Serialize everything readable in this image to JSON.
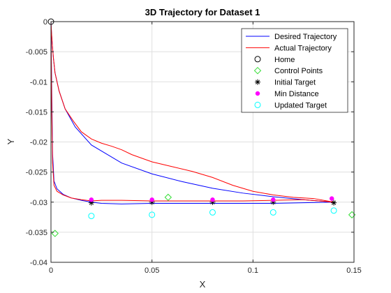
{
  "chart_data": {
    "type": "line",
    "title": "3D Trajectory for Dataset 1",
    "xlabel": "X",
    "ylabel": "Y",
    "xlim": [
      0,
      0.15
    ],
    "ylim": [
      -0.04,
      0
    ],
    "xticks": [
      "0",
      "0.05",
      "0.1",
      "0.15"
    ],
    "yticks": [
      "0",
      "-0.005",
      "-0.01",
      "-0.015",
      "-0.02",
      "-0.025",
      "-0.03",
      "-0.035",
      "-0.04"
    ],
    "grid": true,
    "legend_position": "top-right",
    "series": [
      {
        "name": "Desired Trajectory",
        "kind": "line",
        "color": "#0000ff",
        "x": [
          0,
          0.0003,
          0.0007,
          0.0012,
          0.002,
          0.004,
          0.007,
          0.012,
          0.02,
          0.035,
          0.05,
          0.065,
          0.08,
          0.095,
          0.11,
          0.125,
          0.14,
          0.125,
          0.11,
          0.095,
          0.08,
          0.065,
          0.05,
          0.035,
          0.025,
          0.02,
          0.015,
          0.01,
          0.006,
          0.003,
          0.0015,
          0.0008,
          0.0004,
          0
        ],
        "y": [
          0,
          -0.002,
          -0.004,
          -0.006,
          -0.0085,
          -0.0115,
          -0.0145,
          -0.0175,
          -0.0205,
          -0.0235,
          -0.0253,
          -0.0266,
          -0.0277,
          -0.0285,
          -0.0291,
          -0.0296,
          -0.03,
          -0.0301,
          -0.0302,
          -0.0302,
          -0.0302,
          -0.0302,
          -0.0302,
          -0.0303,
          -0.0302,
          -0.03,
          -0.0297,
          -0.0293,
          -0.0287,
          -0.0278,
          -0.0265,
          -0.022,
          -0.012,
          0
        ]
      },
      {
        "name": "Actual Trajectory",
        "kind": "line",
        "color": "#ff0000",
        "x": [
          0,
          0.0003,
          0.0007,
          0.0012,
          0.002,
          0.004,
          0.007,
          0.011,
          0.015,
          0.02,
          0.025,
          0.03,
          0.035,
          0.04,
          0.05,
          0.06,
          0.07,
          0.08,
          0.09,
          0.1,
          0.11,
          0.12,
          0.13,
          0.14,
          0.125,
          0.11,
          0.095,
          0.08,
          0.065,
          0.05,
          0.035,
          0.025,
          0.02,
          0.015,
          0.01,
          0.006,
          0.003,
          0.0015,
          0.0008,
          0.0004,
          0
        ],
        "y": [
          0,
          -0.002,
          -0.004,
          -0.006,
          -0.0085,
          -0.0115,
          -0.0145,
          -0.0165,
          -0.0183,
          -0.0195,
          -0.0202,
          -0.0207,
          -0.0213,
          -0.0221,
          -0.0233,
          -0.0241,
          -0.0249,
          -0.0259,
          -0.0272,
          -0.0282,
          -0.0288,
          -0.0292,
          -0.0294,
          -0.03,
          -0.0296,
          -0.0297,
          -0.0298,
          -0.0298,
          -0.0298,
          -0.0298,
          -0.0297,
          -0.0297,
          -0.0298,
          -0.0296,
          -0.0293,
          -0.0288,
          -0.0282,
          -0.0272,
          -0.0235,
          -0.015,
          0
        ]
      },
      {
        "name": "Home",
        "kind": "marker",
        "marker": "circle",
        "color": "#000000",
        "x": [
          0
        ],
        "y": [
          0
        ]
      },
      {
        "name": "Control Points",
        "kind": "marker",
        "marker": "diamond",
        "color": "#33dd33",
        "x": [
          0.002,
          0.058,
          0.149
        ],
        "y": [
          -0.0352,
          -0.0292,
          -0.0321
        ]
      },
      {
        "name": "Initial Target",
        "kind": "marker",
        "marker": "star",
        "color": "#000000",
        "x": [
          0.02,
          0.05,
          0.08,
          0.11,
          0.14
        ],
        "y": [
          -0.0301,
          -0.03,
          -0.03,
          -0.03,
          -0.0301
        ]
      },
      {
        "name": "Min Distance",
        "kind": "marker",
        "marker": "dot",
        "color": "#ff00ff",
        "x": [
          0.02,
          0.05,
          0.08,
          0.11,
          0.139
        ],
        "y": [
          -0.0296,
          -0.0296,
          -0.0296,
          -0.0296,
          -0.0294
        ]
      },
      {
        "name": "Updated Target",
        "kind": "marker",
        "marker": "circle",
        "color": "#00ffff",
        "x": [
          0.02,
          0.05,
          0.08,
          0.11,
          0.14
        ],
        "y": [
          -0.0323,
          -0.0321,
          -0.0317,
          -0.0317,
          -0.0314
        ]
      }
    ]
  }
}
